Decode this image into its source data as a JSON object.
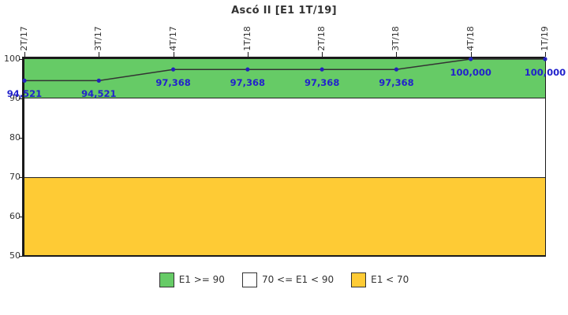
{
  "title": "Ascó II [E1 1T/19]",
  "chart_data": {
    "type": "line",
    "title": "Ascó II [E1 1T/19]",
    "categories": [
      "2T/17",
      "3T/17",
      "4T/17",
      "1T/18",
      "2T/18",
      "3T/18",
      "4T/18",
      "1T/19"
    ],
    "series": [
      {
        "name": "E1",
        "values": [
          94.521,
          94.521,
          97.368,
          97.368,
          97.368,
          97.368,
          100.0,
          100.0
        ]
      }
    ],
    "point_labels": [
      "94,521",
      "94,521",
      "97,368",
      "97,368",
      "97,368",
      "97,368",
      "100,000",
      "100,000"
    ],
    "xlabel": "",
    "ylabel": "",
    "ylim": [
      50,
      100
    ],
    "yticks": [
      100,
      90,
      80,
      70,
      60,
      50
    ],
    "grid": false,
    "bands": [
      {
        "from": 90,
        "to": 100,
        "color": "#66CB66"
      },
      {
        "from": 70,
        "to": 90,
        "color": "#FFFFFF"
      },
      {
        "from": 50,
        "to": 70,
        "color": "#FECB35"
      }
    ],
    "line_color": "#333333",
    "marker_color": "#2222BB",
    "value_label_color": "#2222CC",
    "axis_color": "#1a1a1a"
  },
  "legend": {
    "position": "bottom",
    "items": [
      {
        "label": "E1 >= 90",
        "color": "#66CB66"
      },
      {
        "label": "70 <= E1 < 90",
        "color": "#FFFFFF"
      },
      {
        "label": "E1 < 70",
        "color": "#FECB35"
      }
    ]
  }
}
